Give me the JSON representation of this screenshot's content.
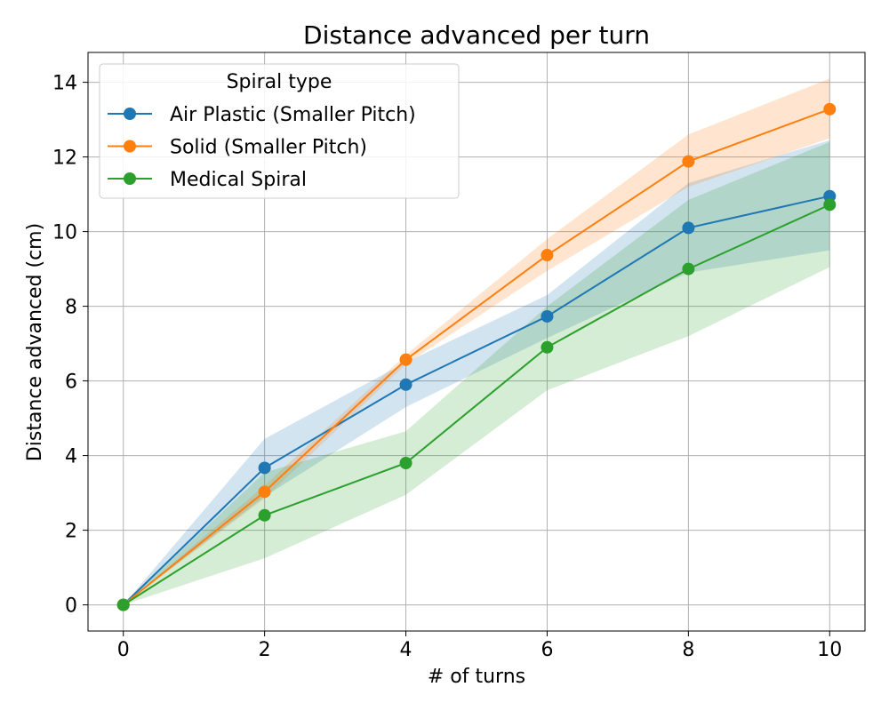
{
  "chart_data": {
    "type": "line",
    "title": "Distance advanced per turn",
    "xlabel": "# of turns",
    "ylabel": "Distance advanced (cm)",
    "xlim": [
      -0.5,
      10.5
    ],
    "ylim": [
      -0.7,
      14.8
    ],
    "xticks": [
      0,
      2,
      4,
      6,
      8,
      10
    ],
    "yticks": [
      0,
      2,
      4,
      6,
      8,
      10,
      12,
      14
    ],
    "grid": true,
    "legend": {
      "title": "Spiral type",
      "placement": "top-left"
    },
    "x": [
      0,
      2,
      4,
      6,
      8,
      10
    ],
    "series": [
      {
        "name": "Air Plastic (Smaller Pitch)",
        "color": "#1f77b4",
        "values": [
          0,
          3.67,
          5.9,
          7.73,
          10.1,
          10.95
        ],
        "lower": [
          0,
          2.9,
          5.3,
          7.15,
          8.9,
          9.5
        ],
        "upper": [
          0,
          4.45,
          6.5,
          8.3,
          11.3,
          12.45
        ]
      },
      {
        "name": "Solid (Smaller Pitch)",
        "color": "#ff7f0e",
        "values": [
          0,
          3.03,
          6.57,
          9.37,
          11.88,
          13.28
        ],
        "lower": [
          0,
          2.85,
          6.45,
          8.95,
          11.2,
          12.5
        ],
        "upper": [
          0,
          3.2,
          6.7,
          9.8,
          12.6,
          14.1
        ]
      },
      {
        "name": "Medical Spiral",
        "color": "#2ca02c",
        "values": [
          0,
          2.4,
          3.8,
          6.9,
          9.0,
          10.72
        ],
        "lower": [
          0,
          1.25,
          2.95,
          5.75,
          7.2,
          9.05
        ],
        "upper": [
          0,
          3.55,
          4.65,
          8.0,
          10.85,
          12.4
        ]
      }
    ]
  }
}
